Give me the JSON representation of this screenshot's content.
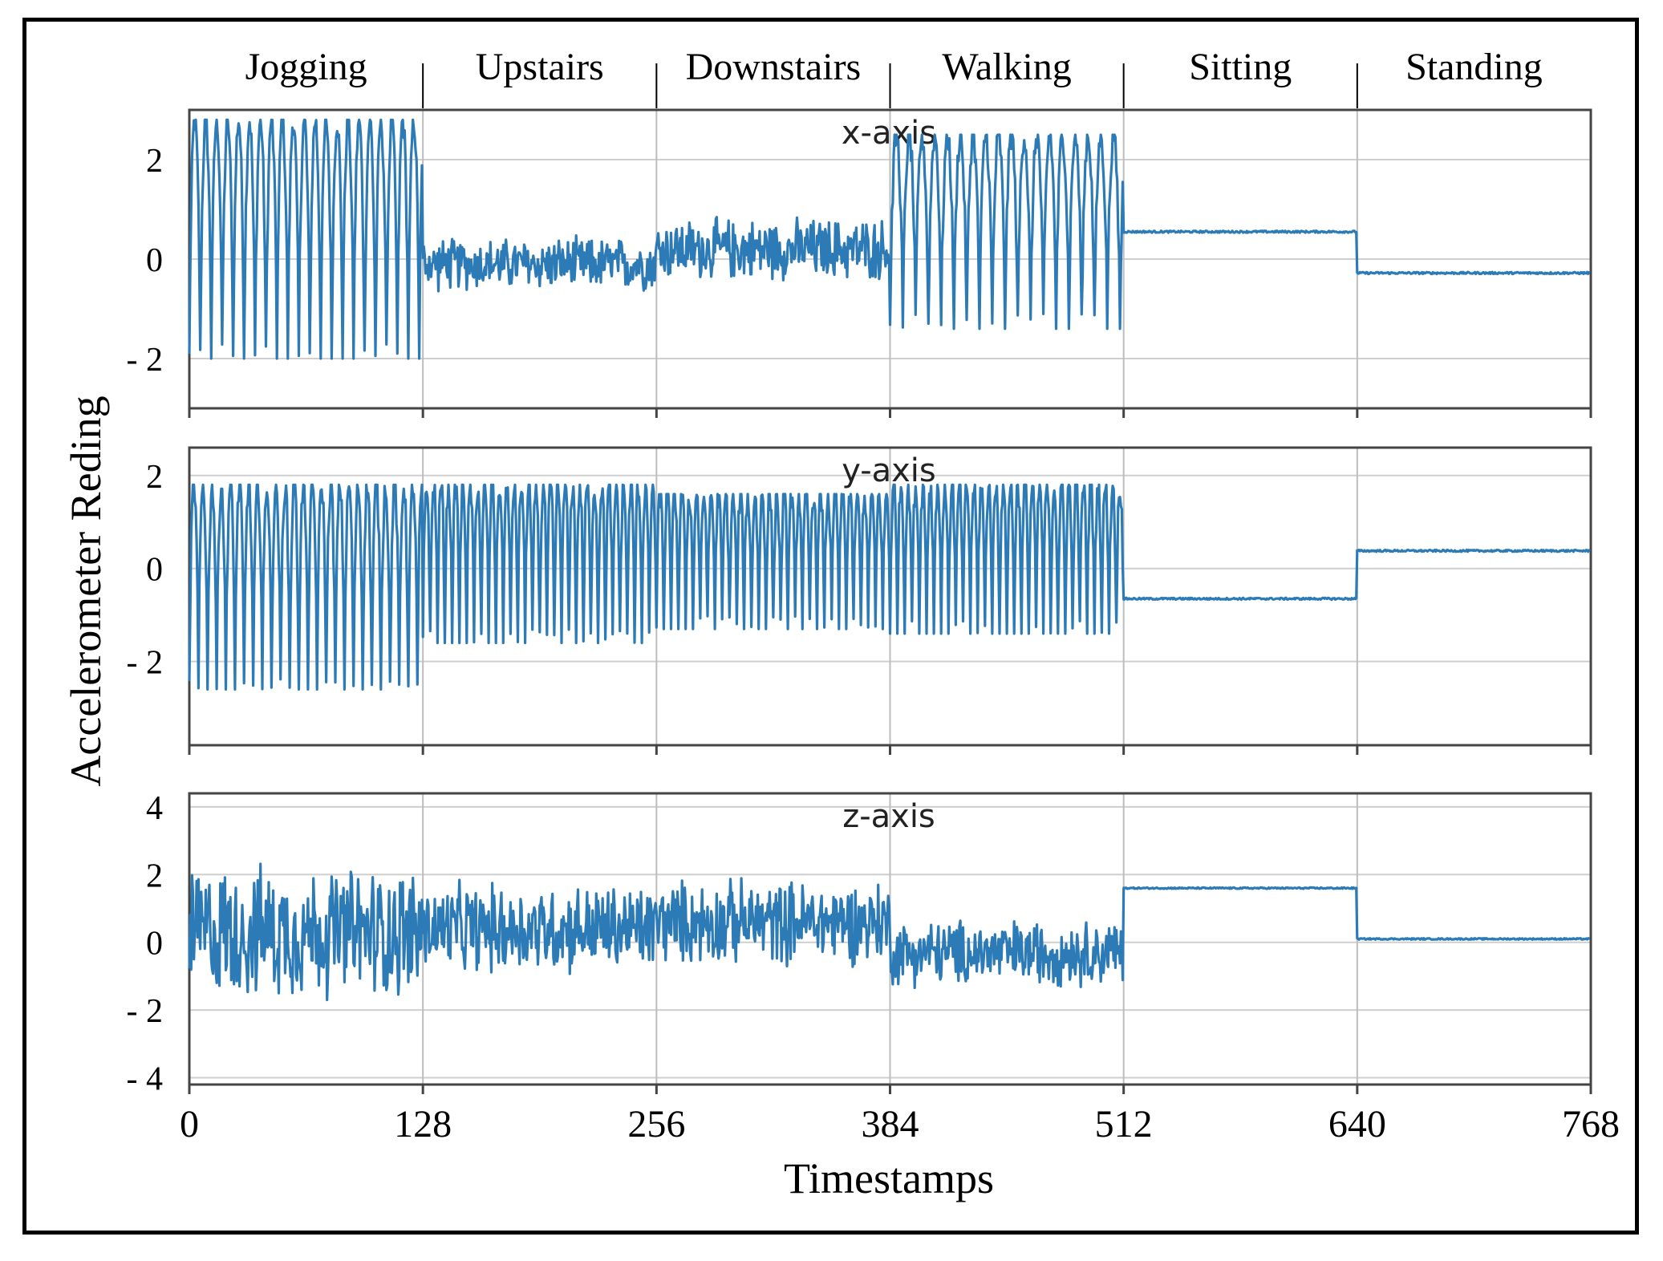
{
  "chart_data": {
    "type": "line",
    "xlabel": "Timestamps",
    "ylabel": "Accelerometer Reding",
    "x_range": [
      0,
      768
    ],
    "x_ticks": [
      0,
      128,
      256,
      384,
      512,
      640,
      768
    ],
    "grid": true,
    "line_color": "#2c7bb6",
    "activities": [
      {
        "name": "Jogging",
        "start": 0,
        "end": 128
      },
      {
        "name": "Upstairs",
        "start": 128,
        "end": 256
      },
      {
        "name": "Downstairs",
        "start": 256,
        "end": 384
      },
      {
        "name": "Walking",
        "start": 384,
        "end": 512
      },
      {
        "name": "Sitting",
        "start": 512,
        "end": 640
      },
      {
        "name": "Standing",
        "start": 640,
        "end": 768
      }
    ],
    "panels": [
      {
        "title": "x-axis",
        "ylim": [
          -3,
          3
        ],
        "yticks": [
          2,
          0,
          -2
        ],
        "ytick_labels": [
          "2",
          "0",
          "- 2"
        ],
        "series_segments": [
          {
            "start": 0,
            "end": 128,
            "kind": "osc",
            "low": -2.0,
            "high": 2.8,
            "period": 6,
            "mean": 1.2
          },
          {
            "start": 128,
            "end": 256,
            "kind": "noise",
            "mean": -0.1,
            "amp": 0.6
          },
          {
            "start": 256,
            "end": 384,
            "kind": "noise",
            "mean": 0.2,
            "amp": 0.7
          },
          {
            "start": 384,
            "end": 512,
            "kind": "osc",
            "low": -1.4,
            "high": 2.5,
            "period": 7,
            "mean": 0.2
          },
          {
            "start": 512,
            "end": 640,
            "kind": "flat",
            "value": 0.55
          },
          {
            "start": 640,
            "end": 768,
            "kind": "flat",
            "value": -0.28
          }
        ]
      },
      {
        "title": "y-axis",
        "ylim": [
          -3.8,
          2.6
        ],
        "yticks": [
          2,
          0,
          -2
        ],
        "ytick_labels": [
          "2",
          "0",
          "- 2"
        ],
        "series_segments": [
          {
            "start": 0,
            "end": 128,
            "kind": "osc",
            "low": -2.6,
            "high": 1.8,
            "period": 5,
            "mean": -0.3
          },
          {
            "start": 128,
            "end": 256,
            "kind": "osc",
            "low": -1.6,
            "high": 1.8,
            "period": 4,
            "mean": 0.3
          },
          {
            "start": 256,
            "end": 384,
            "kind": "osc",
            "low": -1.3,
            "high": 1.6,
            "period": 4,
            "mean": 0.1
          },
          {
            "start": 384,
            "end": 512,
            "kind": "osc",
            "low": -1.4,
            "high": 1.8,
            "period": 4,
            "mean": 0.3
          },
          {
            "start": 512,
            "end": 640,
            "kind": "flat",
            "value": -0.65
          },
          {
            "start": 640,
            "end": 768,
            "kind": "flat",
            "value": 0.38
          }
        ]
      },
      {
        "title": "z-axis",
        "ylim": [
          -4.2,
          4.4
        ],
        "yticks": [
          4,
          2,
          0,
          -2,
          -4
        ],
        "ytick_labels": [
          "4",
          "2",
          "0",
          "- 2",
          "- 4"
        ],
        "series_segments": [
          {
            "start": 0,
            "end": 128,
            "kind": "noise",
            "mean": 0.3,
            "amp": 2.2
          },
          {
            "start": 128,
            "end": 256,
            "kind": "noise",
            "mean": 0.4,
            "amp": 1.5
          },
          {
            "start": 256,
            "end": 384,
            "kind": "noise",
            "mean": 0.6,
            "amp": 1.4
          },
          {
            "start": 384,
            "end": 512,
            "kind": "noise",
            "mean": -0.3,
            "amp": 1.1
          },
          {
            "start": 512,
            "end": 640,
            "kind": "flat",
            "value": 1.6
          },
          {
            "start": 640,
            "end": 768,
            "kind": "flat",
            "value": 0.1
          }
        ]
      }
    ]
  }
}
